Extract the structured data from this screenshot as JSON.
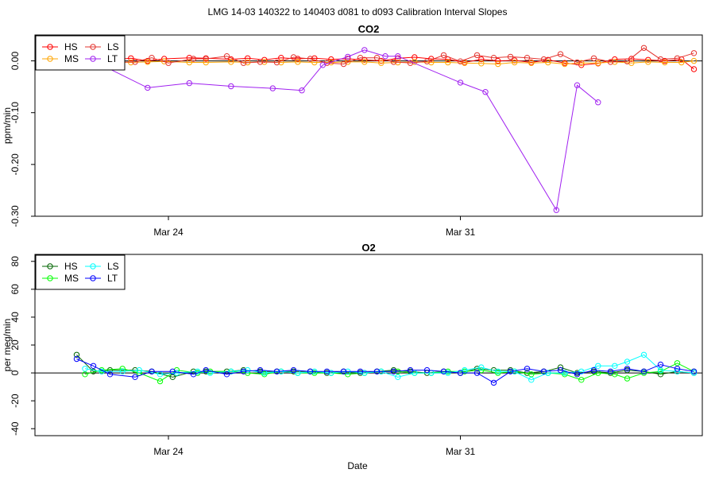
{
  "figure": {
    "title": "LMG  14-03    140322 to 140403    d081 to d093   Calibration Interval Slopes",
    "xlabel": "Date"
  },
  "chart_data": [
    {
      "type": "scatter",
      "title": "CO2",
      "xlabel": "",
      "ylabel": "ppm/min",
      "x_axis": "date",
      "xlim_days": [
        20.8,
        36.8
      ],
      "x_ticks": [
        {
          "day": 24,
          "label": "Mar 24"
        },
        {
          "day": 31,
          "label": "Mar 31"
        }
      ],
      "ylim": [
        -0.3,
        0.05
      ],
      "y_ticks": [
        {
          "value": 0.0,
          "label": "0.00"
        },
        {
          "value": -0.1,
          "label": "-0.10"
        },
        {
          "value": -0.2,
          "label": "-0.20"
        },
        {
          "value": -0.3,
          "label": "-0.30"
        }
      ],
      "hline": 0,
      "legend": "top-left",
      "series": [
        {
          "name": "HS",
          "color": "#ff0000",
          "x": [
            21.8,
            22.2,
            22.5,
            23.1,
            23.5,
            23.9,
            24.5,
            24.9,
            25.5,
            25.9,
            26.3,
            26.7,
            27.1,
            27.5,
            27.9,
            28.3,
            28.7,
            29.1,
            29.5,
            29.9,
            30.3,
            30.7,
            31.1,
            31.5,
            31.9,
            32.3,
            32.7,
            33.1,
            33.5,
            33.9,
            34.3,
            34.7,
            35.1,
            35.5,
            35.9,
            36.3,
            36.6
          ],
          "y": [
            0.0,
            -0.002,
            0.001,
            0.005,
            0.0,
            0.004,
            0.006,
            0.005,
            0.003,
            0.005,
            0.002,
            0.006,
            0.004,
            0.005,
            0.003,
            0.004,
            0.002,
            0.0,
            0.005,
            0.007,
            0.004,
            0.003,
            -0.003,
            0.003,
            0.0,
            0.001,
            -0.003,
            0.002,
            -0.004,
            -0.008,
            -0.005,
            0.003,
            0.004,
            0.002,
            0.0,
            0.003,
            -0.016
          ]
        },
        {
          "name": "MS",
          "color": "#ffa500",
          "x": [
            22.1,
            22.5,
            23.1,
            23.5,
            23.9,
            24.5,
            24.9,
            25.5,
            25.9,
            26.3,
            26.7,
            27.1,
            27.5,
            27.9,
            28.3,
            28.7,
            29.1,
            29.5,
            29.9,
            30.3,
            30.7,
            31.1,
            31.5,
            31.9,
            32.3,
            32.7,
            33.1,
            33.5,
            33.9,
            34.3,
            34.7,
            35.1,
            35.5,
            35.9,
            36.3,
            36.6
          ],
          "y": [
            -0.001,
            -0.002,
            -0.003,
            -0.002,
            -0.001,
            -0.003,
            -0.003,
            -0.002,
            -0.003,
            -0.002,
            -0.003,
            -0.002,
            -0.003,
            -0.003,
            -0.002,
            -0.002,
            -0.004,
            -0.003,
            -0.002,
            -0.003,
            -0.003,
            -0.004,
            -0.005,
            -0.006,
            -0.003,
            -0.004,
            -0.003,
            -0.006,
            -0.004,
            -0.004,
            -0.002,
            -0.004,
            -0.002,
            -0.003,
            -0.003,
            0.0
          ]
        },
        {
          "name": "LS",
          "color": "#e3342f",
          "x": [
            21.8,
            22.2,
            22.6,
            23.2,
            23.6,
            24.0,
            24.6,
            24.9,
            25.4,
            25.8,
            26.2,
            26.6,
            27.0,
            27.4,
            27.8,
            28.2,
            28.6,
            29.0,
            29.4,
            29.8,
            30.2,
            30.6,
            31.0,
            31.4,
            31.8,
            32.2,
            32.6,
            33.0,
            33.4,
            33.8,
            34.2,
            34.6,
            35.0,
            35.4,
            35.8,
            36.2,
            36.6
          ],
          "y": [
            0.027,
            0.011,
            -0.003,
            -0.002,
            0.006,
            -0.004,
            0.004,
            0.004,
            0.009,
            -0.004,
            -0.002,
            -0.003,
            0.007,
            0.004,
            -0.004,
            -0.006,
            0.006,
            0.006,
            -0.002,
            -0.004,
            -0.001,
            0.011,
            -0.001,
            0.011,
            0.006,
            0.008,
            0.006,
            0.003,
            0.013,
            -0.003,
            0.005,
            -0.002,
            -0.001,
            0.025,
            0.003,
            0.005,
            0.015
          ]
        },
        {
          "name": "LT",
          "color": "#a020f0",
          "x": [
            21.8,
            22.5,
            23.5,
            24.5,
            25.5,
            26.5,
            27.2,
            27.7,
            28.3,
            28.7,
            29.2,
            29.5,
            31.0,
            31.6,
            33.3,
            33.8,
            34.3
          ],
          "y": [
            0.014,
            -0.012,
            -0.052,
            -0.043,
            -0.049,
            -0.053,
            -0.057,
            -0.008,
            0.008,
            0.021,
            0.009,
            0.009,
            -0.042,
            -0.06,
            -0.288,
            -0.047,
            -0.08
          ]
        }
      ]
    },
    {
      "type": "scatter",
      "title": "O2",
      "xlabel": "Date",
      "ylabel": "per meg/min",
      "x_axis": "date",
      "xlim_days": [
        20.8,
        36.8
      ],
      "x_ticks": [
        {
          "day": 24,
          "label": "Mar 24"
        },
        {
          "day": 31,
          "label": "Mar 31"
        }
      ],
      "ylim": [
        -45,
        85
      ],
      "y_ticks": [
        {
          "value": 80,
          "label": "80"
        },
        {
          "value": 60,
          "label": "60"
        },
        {
          "value": 40,
          "label": "40"
        },
        {
          "value": 20,
          "label": "20"
        },
        {
          "value": 0,
          "label": "0"
        },
        {
          "value": -20,
          "label": "-20"
        },
        {
          "value": -40,
          "label": "-40"
        }
      ],
      "hline": 0,
      "legend": "top-left",
      "series": [
        {
          "name": "HS",
          "color": "#006400",
          "x": [
            21.8,
            22.2,
            22.6,
            23.2,
            23.6,
            24.1,
            24.6,
            24.9,
            25.4,
            25.8,
            26.2,
            26.6,
            27.0,
            27.4,
            27.8,
            28.2,
            28.6,
            29.0,
            29.4,
            29.8,
            30.2,
            30.6,
            31.0,
            31.4,
            31.8,
            32.2,
            32.6,
            33.0,
            33.4,
            33.8,
            34.2,
            34.6,
            35.0,
            35.4,
            35.8,
            36.2,
            36.6
          ],
          "y": [
            13,
            1,
            2,
            2,
            1,
            -3,
            1,
            1,
            1,
            2,
            1,
            1,
            1,
            1,
            0,
            1,
            0,
            1,
            2,
            1,
            0,
            1,
            0,
            3,
            2,
            2,
            0,
            1,
            4,
            0,
            1,
            0,
            2,
            1,
            -1,
            1,
            0
          ]
        },
        {
          "name": "MS",
          "color": "#00ff00",
          "x": [
            22.0,
            22.4,
            22.9,
            23.3,
            23.8,
            24.2,
            24.7,
            25.0,
            25.5,
            25.9,
            26.3,
            26.7,
            27.1,
            27.5,
            27.9,
            28.3,
            28.7,
            29.1,
            29.5,
            29.9,
            30.3,
            30.7,
            31.1,
            31.5,
            31.9,
            32.3,
            32.7,
            33.1,
            33.5,
            33.9,
            34.3,
            34.7,
            35.0,
            35.4,
            35.8,
            36.2,
            36.6
          ],
          "y": [
            -1,
            2,
            3,
            0,
            -6,
            2,
            0,
            1,
            1,
            0,
            -1,
            1,
            0,
            0,
            0,
            -1,
            0,
            1,
            1,
            0,
            0,
            1,
            1,
            2,
            0,
            1,
            -1,
            0,
            -1,
            -5,
            0,
            -1,
            -4,
            0,
            1,
            7,
            1
          ]
        },
        {
          "name": "LS",
          "color": "#00ffff",
          "x": [
            22.0,
            22.4,
            22.9,
            23.3,
            23.8,
            24.2,
            24.7,
            25.0,
            25.5,
            25.9,
            26.3,
            26.7,
            27.1,
            27.5,
            27.9,
            28.3,
            28.7,
            29.1,
            29.5,
            29.9,
            30.3,
            30.7,
            31.1,
            31.5,
            31.9,
            32.3,
            32.7,
            33.1,
            33.5,
            33.9,
            34.3,
            34.7,
            35.0,
            35.4,
            35.8,
            36.2,
            36.6
          ],
          "y": [
            3,
            1,
            1,
            2,
            -1,
            0,
            1,
            0,
            1,
            2,
            0,
            1,
            0,
            1,
            0,
            1,
            0,
            1,
            -3,
            0,
            0,
            0,
            2,
            4,
            1,
            1,
            -5,
            0,
            0,
            1,
            5,
            5,
            8,
            13,
            2,
            1,
            0
          ]
        },
        {
          "name": "LT",
          "color": "#0000ff",
          "x": [
            21.8,
            22.2,
            22.6,
            23.2,
            23.6,
            24.1,
            24.6,
            24.9,
            25.4,
            25.8,
            26.2,
            26.6,
            27.0,
            27.4,
            27.8,
            28.2,
            28.6,
            29.0,
            29.4,
            29.8,
            30.2,
            30.6,
            31.0,
            31.4,
            31.8,
            32.2,
            32.6,
            33.0,
            33.4,
            33.8,
            34.2,
            34.6,
            35.0,
            35.4,
            35.8,
            36.2,
            36.6
          ],
          "y": [
            10,
            5,
            -1,
            -3,
            1,
            1,
            -1,
            2,
            -1,
            1,
            2,
            1,
            2,
            1,
            1,
            1,
            1,
            1,
            1,
            2,
            2,
            1,
            0,
            0,
            -7,
            1,
            3,
            1,
            2,
            -1,
            2,
            1,
            3,
            1,
            6,
            3,
            1
          ]
        }
      ]
    }
  ]
}
